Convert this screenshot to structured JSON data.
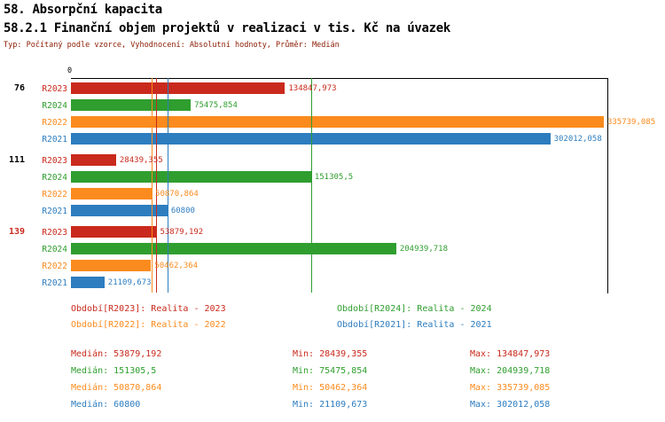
{
  "header": {
    "title": "58. Absorpční kapacita",
    "subtitle": "58.2.1 Finanční objem projektů v realizaci v tis. Kč na úvazek",
    "meta": "Typ: Počítaný podle vzorce, Vyhodnocení: Absolutní hodnoty, Průměr: Medián"
  },
  "colors": {
    "R2023": "#c92a1d",
    "R2024": "#2f9e2f",
    "R2022": "#fb8b1e",
    "R2021": "#2d7dbf"
  },
  "chart_data": {
    "type": "bar",
    "orientation": "horizontal",
    "title": "58.2.1 Finanční objem projektů v realizaci v tis. Kč na úvazek",
    "xlabel": "",
    "ylabel": "",
    "axis": {
      "zero_label": "0",
      "max": 338000
    },
    "grid": false,
    "legend_position": "below",
    "groups": [
      {
        "label": "76",
        "label_color": "#000000",
        "bars": [
          {
            "series": "R2023",
            "value": 134847.973,
            "value_label": "134847,973"
          },
          {
            "series": "R2024",
            "value": 75475.854,
            "value_label": "75475,854"
          },
          {
            "series": "R2022",
            "value": 335739.085,
            "value_label": "335739,085"
          },
          {
            "series": "R2021",
            "value": 302012.058,
            "value_label": "302012,058"
          }
        ]
      },
      {
        "label": "111",
        "label_color": "#000000",
        "bars": [
          {
            "series": "R2023",
            "value": 28439.355,
            "value_label": "28439,355"
          },
          {
            "series": "R2024",
            "value": 151305.5,
            "value_label": "151305,5"
          },
          {
            "series": "R2022",
            "value": 50870.864,
            "value_label": "50870,864"
          },
          {
            "series": "R2021",
            "value": 60800,
            "value_label": "60800"
          }
        ]
      },
      {
        "label": "139",
        "label_color": "#c92a1d",
        "bars": [
          {
            "series": "R2023",
            "value": 53879.192,
            "value_label": "53879,192"
          },
          {
            "series": "R2024",
            "value": 204939.718,
            "value_label": "204939,718"
          },
          {
            "series": "R2022",
            "value": 50462.364,
            "value_label": "50462,364"
          },
          {
            "series": "R2021",
            "value": 21109.673,
            "value_label": "21109,673"
          }
        ]
      }
    ],
    "medians": [
      {
        "series": "R2023",
        "value": 53879.192
      },
      {
        "series": "R2024",
        "value": 151305.5
      },
      {
        "series": "R2022",
        "value": 50870.864
      },
      {
        "series": "R2021",
        "value": 60800
      }
    ]
  },
  "legend": [
    {
      "series": "R2023",
      "label": "Období[R2023]: Realita - 2023"
    },
    {
      "series": "R2024",
      "label": "Období[R2024]: Realita - 2024"
    },
    {
      "series": "R2022",
      "label": "Období[R2022]: Realita - 2022"
    },
    {
      "series": "R2021",
      "label": "Období[R2021]: Realita - 2021"
    }
  ],
  "stats": [
    {
      "series": "R2023",
      "median": "Medián: 53879,192",
      "min": "Min: 28439,355",
      "max": "Max: 134847,973"
    },
    {
      "series": "R2024",
      "median": "Medián: 151305,5",
      "min": "Min: 75475,854",
      "max": "Max: 204939,718"
    },
    {
      "series": "R2022",
      "median": "Medián: 50870,864",
      "min": "Min: 50462,364",
      "max": "Max: 335739,085"
    },
    {
      "series": "R2021",
      "median": "Medián: 60800",
      "min": "Min: 21109,673",
      "max": "Max: 302012,058"
    }
  ]
}
